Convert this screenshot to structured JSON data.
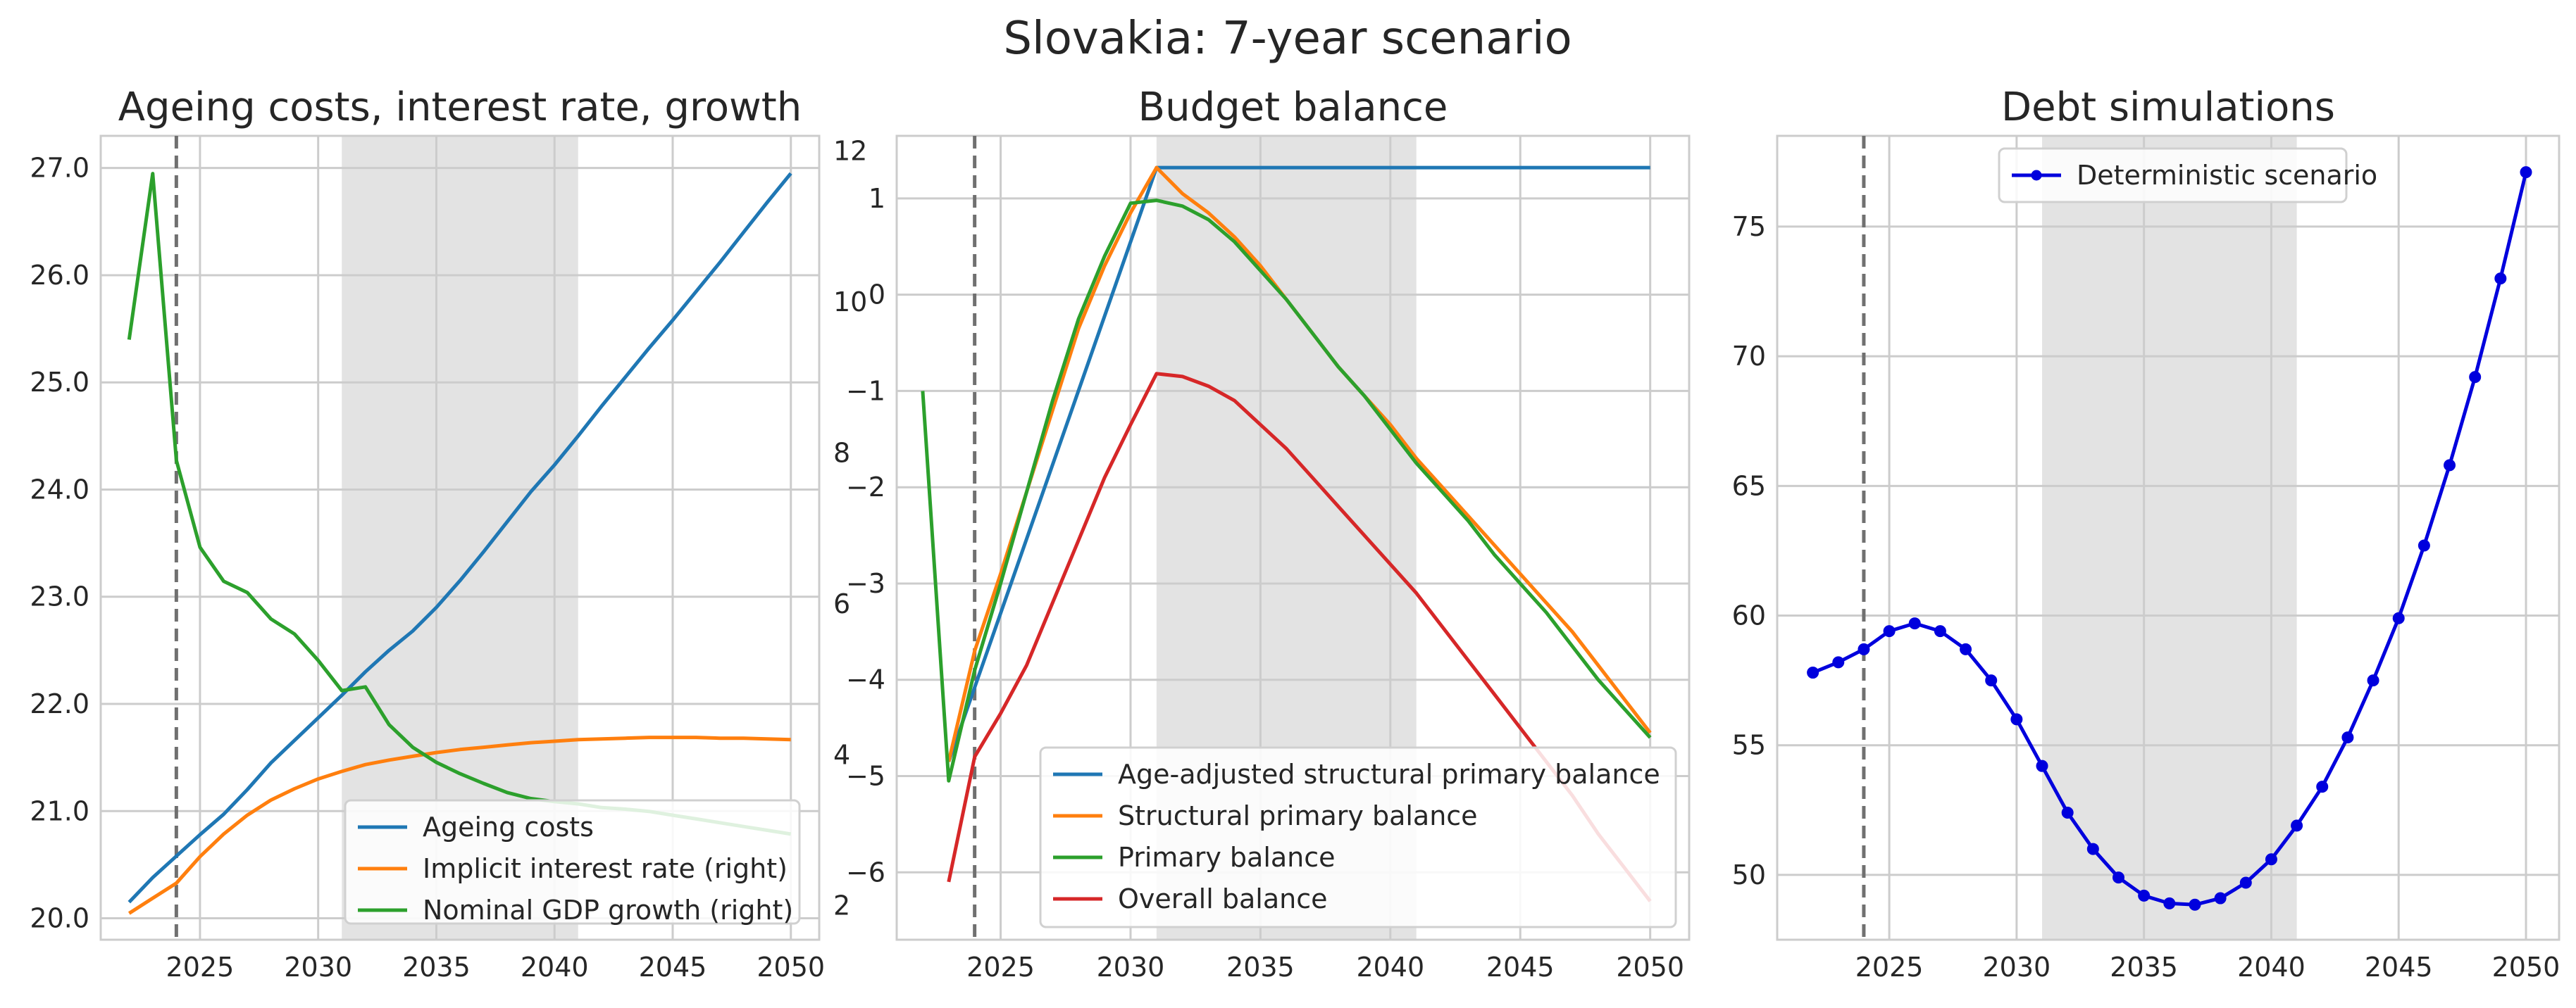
{
  "figure_title": "Slovakia: 7-year scenario",
  "colors": {
    "blue": "#1f77b4",
    "orange": "#ff7f0e",
    "green": "#2ca02c",
    "red": "#d62728",
    "debt": "#0000dd",
    "shade": "#e3e3e3",
    "vline": "#707070"
  },
  "chart_data": [
    {
      "type": "line",
      "title": "Ageing costs, interest rate, growth",
      "xlim": [
        2020.8,
        2051.2
      ],
      "ylim": [
        19.8,
        27.3
      ],
      "y2lim": [
        1.55,
        12.2
      ],
      "xticks": [
        2025,
        2030,
        2035,
        2040,
        2045,
        2050
      ],
      "xtick_labels": [
        "2025",
        "2030",
        "2035",
        "2040",
        "2045",
        "2050"
      ],
      "yticks": [
        20,
        21,
        22,
        23,
        24,
        25,
        26,
        27
      ],
      "ytick_labels": [
        "20.0",
        "21.0",
        "22.0",
        "23.0",
        "24.0",
        "25.0",
        "26.0",
        "27.0"
      ],
      "y2ticks": [
        2,
        4,
        6,
        8,
        10,
        12
      ],
      "y2tick_labels": [
        "2",
        "4",
        "6",
        "8",
        "10",
        "12"
      ],
      "shaded_range": [
        2031,
        2041
      ],
      "vline": 2024,
      "legend_position": "lower right",
      "series": [
        {
          "name": "Ageing costs",
          "color": "blue",
          "axis": "left",
          "x": [
            2022,
            2023,
            2024,
            2025,
            2026,
            2027,
            2028,
            2029,
            2030,
            2031,
            2032,
            2033,
            2034,
            2035,
            2036,
            2037,
            2038,
            2039,
            2040,
            2041,
            2042,
            2043,
            2044,
            2045,
            2046,
            2047,
            2048,
            2049,
            2050
          ],
          "y": [
            20.15,
            20.38,
            20.58,
            20.78,
            20.97,
            21.2,
            21.45,
            21.66,
            21.87,
            22.08,
            22.3,
            22.5,
            22.68,
            22.9,
            23.15,
            23.42,
            23.7,
            23.98,
            24.23,
            24.5,
            24.78,
            25.05,
            25.32,
            25.58,
            25.85,
            26.12,
            26.4,
            26.68,
            26.95
          ]
        },
        {
          "name": "Implicit interest rate (right)",
          "color": "orange",
          "axis": "right",
          "x": [
            2022,
            2023,
            2024,
            2025,
            2026,
            2027,
            2028,
            2029,
            2030,
            2031,
            2032,
            2033,
            2034,
            2035,
            2036,
            2037,
            2038,
            2039,
            2040,
            2041,
            2042,
            2043,
            2044,
            2045,
            2046,
            2047,
            2048,
            2049,
            2050
          ],
          "y": [
            1.9,
            2.1,
            2.3,
            2.65,
            2.95,
            3.2,
            3.4,
            3.55,
            3.68,
            3.78,
            3.87,
            3.93,
            3.98,
            4.03,
            4.07,
            4.1,
            4.13,
            4.16,
            4.18,
            4.2,
            4.21,
            4.22,
            4.23,
            4.23,
            4.23,
            4.22,
            4.22,
            4.21,
            4.2
          ]
        },
        {
          "name": "Nominal GDP growth (right)",
          "color": "green",
          "axis": "right",
          "x": [
            2022,
            2023,
            2024,
            2025,
            2026,
            2027,
            2028,
            2029,
            2030,
            2031,
            2032,
            2033,
            2034,
            2035,
            2036,
            2037,
            2038,
            2039,
            2040,
            2041,
            2042,
            2043,
            2044,
            2045,
            2046,
            2047,
            2048,
            2049,
            2050
          ],
          "y": [
            9.5,
            11.7,
            7.9,
            6.75,
            6.3,
            6.15,
            5.8,
            5.6,
            5.25,
            4.85,
            4.9,
            4.4,
            4.1,
            3.9,
            3.75,
            3.62,
            3.5,
            3.42,
            3.38,
            3.35,
            3.3,
            3.28,
            3.25,
            3.2,
            3.15,
            3.1,
            3.05,
            3.0,
            2.95
          ]
        }
      ]
    },
    {
      "type": "line",
      "title": "Budget balance",
      "xlim": [
        2021.0,
        2051.5
      ],
      "ylim": [
        -6.7,
        1.65
      ],
      "xticks": [
        2025,
        2030,
        2035,
        2040,
        2045,
        2050
      ],
      "xtick_labels": [
        "2025",
        "2030",
        "2035",
        "2040",
        "2045",
        "2050"
      ],
      "yticks": [
        -6,
        -5,
        -4,
        -3,
        -2,
        -1,
        0,
        1
      ],
      "ytick_labels": [
        "−6",
        "−5",
        "−4",
        "−3",
        "−2",
        "−1",
        "0",
        "1"
      ],
      "shaded_range": [
        2031,
        2041
      ],
      "vline": 2024,
      "legend_position": "lower right",
      "series": [
        {
          "name": "Age-adjusted structural primary balance",
          "color": "blue",
          "x": [
            2023,
            2031,
            2032,
            2050
          ],
          "y": [
            -4.85,
            1.32,
            1.32,
            1.32
          ]
        },
        {
          "name": "Structural primary balance",
          "color": "orange",
          "x": [
            2023,
            2024,
            2025,
            2026,
            2027,
            2028,
            2029,
            2030,
            2031,
            2032,
            2033,
            2034,
            2035,
            2036,
            2037,
            2038,
            2039,
            2040,
            2041,
            2042,
            2043,
            2044,
            2045,
            2046,
            2047,
            2048,
            2049,
            2050
          ],
          "y": [
            -4.85,
            -3.7,
            -2.9,
            -2.05,
            -1.2,
            -0.35,
            0.3,
            0.85,
            1.32,
            1.05,
            0.85,
            0.6,
            0.3,
            -0.05,
            -0.4,
            -0.75,
            -1.05,
            -1.35,
            -1.7,
            -2.0,
            -2.3,
            -2.6,
            -2.9,
            -3.2,
            -3.5,
            -3.85,
            -4.2,
            -4.55
          ]
        },
        {
          "name": "Primary balance",
          "color": "green",
          "x": [
            2022,
            2023,
            2024,
            2025,
            2026,
            2027,
            2028,
            2029,
            2030,
            2031,
            2032,
            2033,
            2034,
            2035,
            2036,
            2037,
            2038,
            2039,
            2040,
            2041,
            2042,
            2043,
            2044,
            2045,
            2046,
            2047,
            2048,
            2049,
            2050
          ],
          "y": [
            -1.0,
            -5.05,
            -3.9,
            -3.0,
            -2.05,
            -1.1,
            -0.25,
            0.4,
            0.95,
            0.98,
            0.92,
            0.78,
            0.55,
            0.25,
            -0.05,
            -0.4,
            -0.75,
            -1.05,
            -1.4,
            -1.75,
            -2.05,
            -2.35,
            -2.7,
            -3.0,
            -3.3,
            -3.65,
            -4.0,
            -4.3,
            -4.6
          ]
        },
        {
          "name": "Overall balance",
          "color": "red",
          "x": [
            2023,
            2024,
            2025,
            2026,
            2027,
            2028,
            2029,
            2030,
            2031,
            2032,
            2033,
            2034,
            2035,
            2036,
            2037,
            2038,
            2039,
            2040,
            2041,
            2042,
            2043,
            2044,
            2045,
            2046,
            2047,
            2048,
            2049,
            2050
          ],
          "y": [
            -6.1,
            -4.8,
            -4.35,
            -3.85,
            -3.2,
            -2.55,
            -1.9,
            -1.35,
            -0.82,
            -0.85,
            -0.95,
            -1.1,
            -1.35,
            -1.6,
            -1.9,
            -2.2,
            -2.5,
            -2.8,
            -3.1,
            -3.45,
            -3.8,
            -4.15,
            -4.5,
            -4.85,
            -5.2,
            -5.6,
            -5.95,
            -6.3
          ]
        }
      ]
    },
    {
      "type": "line",
      "title": "Debt simulations",
      "xlim": [
        2020.6,
        2051.3
      ],
      "ylim": [
        47.5,
        78.5
      ],
      "xticks": [
        2025,
        2030,
        2035,
        2040,
        2045,
        2050
      ],
      "xtick_labels": [
        "2025",
        "2030",
        "2035",
        "2040",
        "2045",
        "2050"
      ],
      "yticks": [
        50,
        55,
        60,
        65,
        70,
        75
      ],
      "ytick_labels": [
        "50",
        "55",
        "60",
        "65",
        "70",
        "75"
      ],
      "shaded_range": [
        2031,
        2041
      ],
      "vline": 2024,
      "legend_position": "upper center",
      "series": [
        {
          "name": "Deterministic scenario",
          "color": "debt",
          "markers": true,
          "x": [
            2022,
            2023,
            2024,
            2025,
            2026,
            2027,
            2028,
            2029,
            2030,
            2031,
            2032,
            2033,
            2034,
            2035,
            2036,
            2037,
            2038,
            2039,
            2040,
            2041,
            2042,
            2043,
            2044,
            2045,
            2046,
            2047,
            2048,
            2049,
            2050
          ],
          "y": [
            57.8,
            58.2,
            58.7,
            59.4,
            59.7,
            59.4,
            58.7,
            57.5,
            56.0,
            54.2,
            52.4,
            51.0,
            49.9,
            49.2,
            48.9,
            48.85,
            49.1,
            49.7,
            50.6,
            51.9,
            53.4,
            55.3,
            57.5,
            59.9,
            62.7,
            65.8,
            69.2,
            73.0,
            77.1
          ]
        }
      ]
    }
  ]
}
